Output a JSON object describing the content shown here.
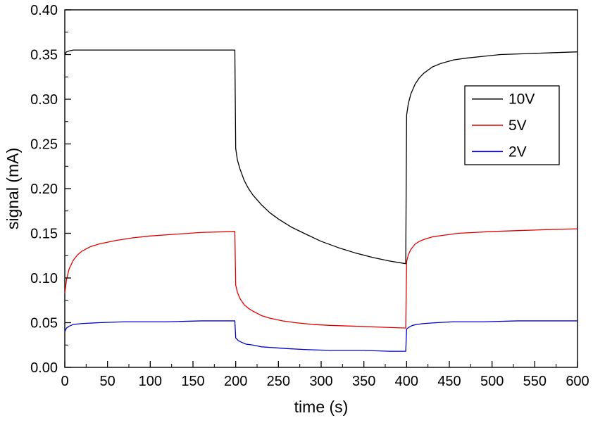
{
  "chart_data": {
    "type": "line",
    "title": "",
    "xlabel": "time (s)",
    "ylabel": "signal (mA)",
    "xlim": [
      0,
      600
    ],
    "ylim": [
      0.0,
      0.4
    ],
    "grid": false,
    "x_ticks": [
      {
        "v": 0,
        "label": "0"
      },
      {
        "v": 50,
        "label": "50"
      },
      {
        "v": 100,
        "label": "100"
      },
      {
        "v": 150,
        "label": "150"
      },
      {
        "v": 200,
        "label": "200"
      },
      {
        "v": 250,
        "label": "250"
      },
      {
        "v": 300,
        "label": "300"
      },
      {
        "v": 350,
        "label": "350"
      },
      {
        "v": 400,
        "label": "400"
      },
      {
        "v": 450,
        "label": "450"
      },
      {
        "v": 500,
        "label": "500"
      },
      {
        "v": 550,
        "label": "550"
      },
      {
        "v": 600,
        "label": "600"
      }
    ],
    "y_ticks": [
      {
        "v": 0.0,
        "label": "0.00"
      },
      {
        "v": 0.05,
        "label": "0.05"
      },
      {
        "v": 0.1,
        "label": "0.10"
      },
      {
        "v": 0.15,
        "label": "0.15"
      },
      {
        "v": 0.2,
        "label": "0.20"
      },
      {
        "v": 0.25,
        "label": "0.25"
      },
      {
        "v": 0.3,
        "label": "0.30"
      },
      {
        "v": 0.35,
        "label": "0.35"
      },
      {
        "v": 0.4,
        "label": "0.40"
      }
    ],
    "legend": {
      "position": "upper-right",
      "entries": [
        "10V",
        "5V",
        "2V"
      ]
    },
    "series": [
      {
        "name": "10V",
        "color": "#000000",
        "points": [
          [
            0,
            0.35
          ],
          [
            2,
            0.353
          ],
          [
            5,
            0.354
          ],
          [
            10,
            0.355
          ],
          [
            50,
            0.355
          ],
          [
            100,
            0.355
          ],
          [
            150,
            0.355
          ],
          [
            199,
            0.355
          ],
          [
            200,
            0.245
          ],
          [
            202,
            0.232
          ],
          [
            205,
            0.222
          ],
          [
            210,
            0.209
          ],
          [
            215,
            0.2
          ],
          [
            220,
            0.193
          ],
          [
            230,
            0.182
          ],
          [
            240,
            0.173
          ],
          [
            250,
            0.166
          ],
          [
            265,
            0.157
          ],
          [
            280,
            0.15
          ],
          [
            300,
            0.141
          ],
          [
            320,
            0.134
          ],
          [
            340,
            0.128
          ],
          [
            360,
            0.123
          ],
          [
            380,
            0.119
          ],
          [
            399,
            0.116
          ],
          [
            400,
            0.282
          ],
          [
            402,
            0.295
          ],
          [
            405,
            0.306
          ],
          [
            410,
            0.317
          ],
          [
            415,
            0.324
          ],
          [
            420,
            0.329
          ],
          [
            430,
            0.336
          ],
          [
            440,
            0.34
          ],
          [
            455,
            0.344
          ],
          [
            470,
            0.346
          ],
          [
            490,
            0.348
          ],
          [
            510,
            0.35
          ],
          [
            540,
            0.351
          ],
          [
            570,
            0.352
          ],
          [
            600,
            0.353
          ]
        ]
      },
      {
        "name": "5V",
        "color": "#e00000",
        "points": [
          [
            0,
            0.083
          ],
          [
            2,
            0.098
          ],
          [
            5,
            0.11
          ],
          [
            10,
            0.12
          ],
          [
            15,
            0.126
          ],
          [
            20,
            0.13
          ],
          [
            30,
            0.135
          ],
          [
            40,
            0.138
          ],
          [
            60,
            0.142
          ],
          [
            80,
            0.145
          ],
          [
            100,
            0.147
          ],
          [
            130,
            0.149
          ],
          [
            160,
            0.151
          ],
          [
            199,
            0.152
          ],
          [
            200,
            0.092
          ],
          [
            202,
            0.084
          ],
          [
            205,
            0.077
          ],
          [
            210,
            0.07
          ],
          [
            215,
            0.066
          ],
          [
            220,
            0.063
          ],
          [
            230,
            0.058
          ],
          [
            240,
            0.055
          ],
          [
            255,
            0.052
          ],
          [
            270,
            0.05
          ],
          [
            290,
            0.048
          ],
          [
            310,
            0.047
          ],
          [
            340,
            0.046
          ],
          [
            370,
            0.045
          ],
          [
            399,
            0.044
          ],
          [
            400,
            0.118
          ],
          [
            402,
            0.126
          ],
          [
            405,
            0.132
          ],
          [
            410,
            0.138
          ],
          [
            415,
            0.141
          ],
          [
            420,
            0.143
          ],
          [
            430,
            0.146
          ],
          [
            445,
            0.148
          ],
          [
            460,
            0.15
          ],
          [
            480,
            0.151
          ],
          [
            500,
            0.152
          ],
          [
            530,
            0.153
          ],
          [
            560,
            0.154
          ],
          [
            600,
            0.155
          ]
        ]
      },
      {
        "name": "2V",
        "color": "#0000cc",
        "points": [
          [
            0,
            0.04
          ],
          [
            2,
            0.044
          ],
          [
            5,
            0.046
          ],
          [
            10,
            0.048
          ],
          [
            20,
            0.049
          ],
          [
            40,
            0.05
          ],
          [
            70,
            0.051
          ],
          [
            120,
            0.051
          ],
          [
            160,
            0.052
          ],
          [
            199,
            0.052
          ],
          [
            200,
            0.033
          ],
          [
            203,
            0.03
          ],
          [
            207,
            0.028
          ],
          [
            212,
            0.026
          ],
          [
            220,
            0.025
          ],
          [
            230,
            0.023
          ],
          [
            245,
            0.022
          ],
          [
            260,
            0.021
          ],
          [
            280,
            0.02
          ],
          [
            310,
            0.019
          ],
          [
            350,
            0.019
          ],
          [
            380,
            0.018
          ],
          [
            399,
            0.018
          ],
          [
            400,
            0.043
          ],
          [
            403,
            0.045
          ],
          [
            407,
            0.047
          ],
          [
            412,
            0.048
          ],
          [
            420,
            0.049
          ],
          [
            435,
            0.05
          ],
          [
            455,
            0.051
          ],
          [
            490,
            0.051
          ],
          [
            530,
            0.052
          ],
          [
            600,
            0.052
          ]
        ]
      }
    ]
  }
}
